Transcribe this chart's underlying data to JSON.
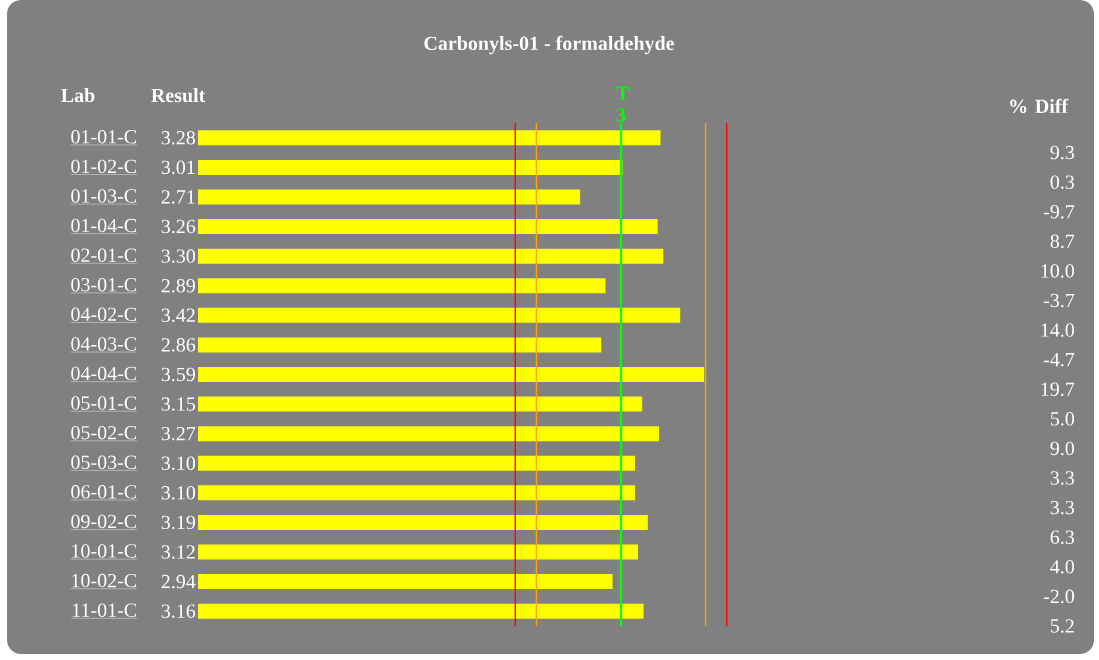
{
  "chart_data": {
    "type": "bar",
    "orientation": "horizontal",
    "title": "Carbonyls-01 - formaldehyde",
    "categories": [
      "01-01-C",
      "01-02-C",
      "01-03-C",
      "01-04-C",
      "02-01-C",
      "03-01-C",
      "04-02-C",
      "04-03-C",
      "04-04-C",
      "05-01-C",
      "05-02-C",
      "05-03-C",
      "06-01-C",
      "09-02-C",
      "10-01-C",
      "10-02-C",
      "11-01-C"
    ],
    "values": [
      3.28,
      3.01,
      2.71,
      3.26,
      3.3,
      2.89,
      3.42,
      2.86,
      3.59,
      3.15,
      3.27,
      3.1,
      3.1,
      3.19,
      3.12,
      2.94,
      3.16
    ],
    "value_labels": [
      "3.28",
      "3.01",
      "2.71",
      "3.26",
      "3.30",
      "2.89",
      "3.42",
      "2.86",
      "3.59",
      "3.15",
      "3.27",
      "3.10",
      "3.10",
      "3.19",
      "3.12",
      "2.94",
      "3.16"
    ],
    "color": "#ffff00",
    "tick_labels": "y",
    "ref_lines": [
      {
        "axis": "x",
        "value": 2.25,
        "label": null,
        "color": "#ff0000"
      },
      {
        "axis": "x",
        "value": 2.4,
        "label": null,
        "color": "#ffa500"
      },
      {
        "axis": "x",
        "value": 3.0,
        "label": "T 3",
        "color": "#00ff00"
      },
      {
        "axis": "x",
        "value": 3.6,
        "label": null,
        "color": "#ffa500"
      },
      {
        "axis": "x",
        "value": 3.75,
        "label": null,
        "color": "#ff0000"
      }
    ],
    "annotations": [
      "Lab",
      "Result",
      "% Diff",
      "9.3",
      "0.3",
      "-9.7",
      "8.7",
      "10.0",
      "-3.7",
      "14.0",
      "-4.7",
      "19.7",
      "5.0",
      "9.0",
      "3.3",
      "3.3",
      "6.3",
      "4.0",
      "-2.0",
      "5.2"
    ]
  }
}
